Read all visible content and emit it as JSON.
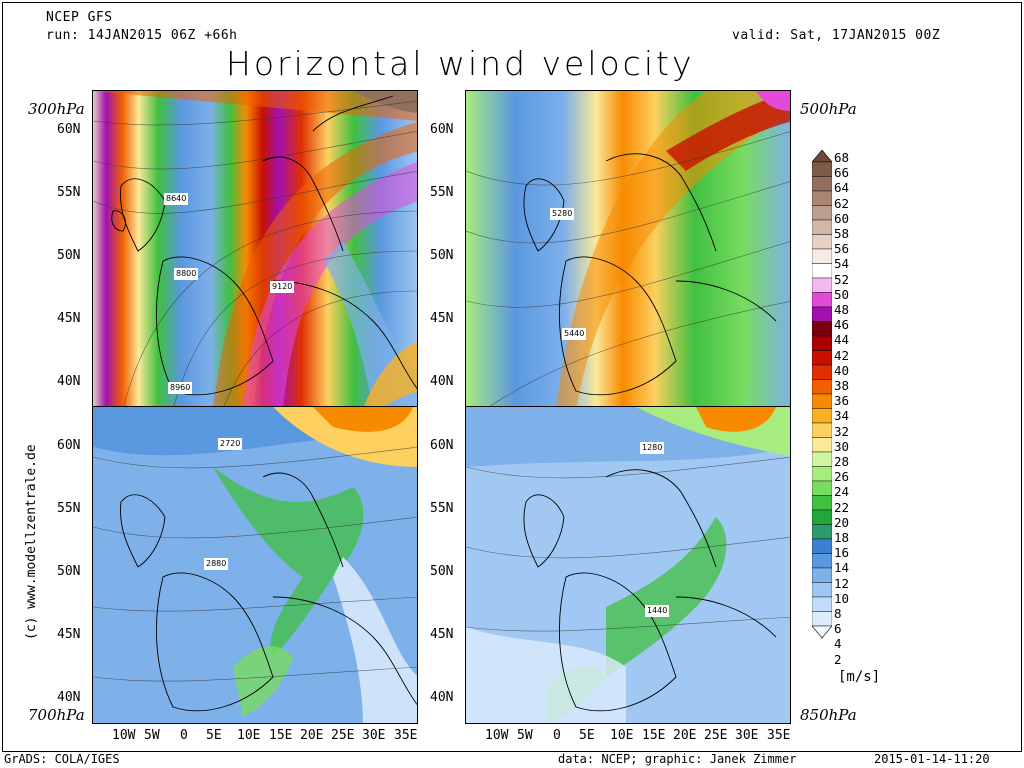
{
  "header": {
    "model": "NCEP GFS",
    "run": "run: 14JAN2015 06Z +66h",
    "valid": "valid: Sat, 17JAN2015 00Z",
    "title": "Horizontal wind velocity"
  },
  "levels": {
    "top_left": "300hPa",
    "top_right": "500hPa",
    "bottom_left": "700hPa",
    "bottom_right": "850hPa"
  },
  "contour_labels": {
    "p300": [
      "8640",
      "8800",
      "9120",
      "8960"
    ],
    "p500": [
      "5280",
      "5440"
    ],
    "p700": [
      "2720",
      "2880"
    ],
    "p850": [
      "1280",
      "1440"
    ]
  },
  "lat_ticks": [
    "60N",
    "55N",
    "50N",
    "45N",
    "40N"
  ],
  "lon_ticks": [
    "10W",
    "5W",
    "0",
    "5E",
    "10E",
    "15E",
    "20E",
    "25E",
    "30E",
    "35E"
  ],
  "copyright": "(c) www.modellzentrale.de",
  "footer": {
    "left": "GrADS: COLA/IGES",
    "center": "data: NCEP; graphic: Janek Zimmer",
    "right": "2015-01-14-11:20"
  },
  "colorbar": {
    "units": "[m/s]",
    "labels": [
      "68",
      "66",
      "64",
      "62",
      "60",
      "58",
      "56",
      "54",
      "52",
      "50",
      "48",
      "46",
      "44",
      "42",
      "40",
      "38",
      "36",
      "34",
      "32",
      "30",
      "28",
      "26",
      "24",
      "22",
      "20",
      "18",
      "16",
      "14",
      "12",
      "10",
      "8",
      "6",
      "4",
      "2"
    ],
    "colors": [
      "#6b4a3a",
      "#7e5a48",
      "#93705e",
      "#a88574",
      "#bd9d8c",
      "#d2b6a7",
      "#e6d1c5",
      "#f5ebe4",
      "#ffffff",
      "#f6b7f0",
      "#e44ad8",
      "#a210b0",
      "#7a0010",
      "#a80000",
      "#c81000",
      "#e03000",
      "#f06000",
      "#f88a00",
      "#fbb020",
      "#fdd060",
      "#fbe898",
      "#d0f4a0",
      "#a8ec80",
      "#78dc60",
      "#40c040",
      "#22a838",
      "#2c9a6e",
      "#3c7fd0",
      "#5a98e0",
      "#7eb0ea",
      "#a0c8f2",
      "#c0dcf8",
      "#dcecfc",
      "#f4f8ff"
    ]
  },
  "legend_colors": {
    "land_border": "#000000",
    "contour": "#333333"
  }
}
